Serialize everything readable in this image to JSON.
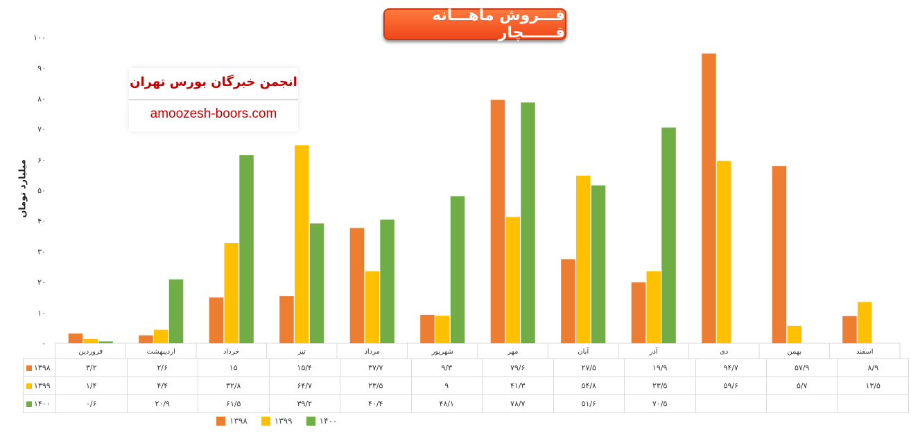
{
  "header": {
    "title": "فـــروش ماهـــانه قــــــچار"
  },
  "logo": {
    "title": "انجمن خبرگان بورس تهران",
    "url": "amoozesh-boors.com"
  },
  "chart_data": {
    "type": "bar",
    "ylabel": "میلیارد تومان",
    "ylim": [
      0,
      100
    ],
    "y_ticks": [
      0,
      10,
      20,
      30,
      40,
      50,
      60,
      70,
      80,
      90,
      100
    ],
    "y_tick_labels": [
      "۰",
      "۱۰",
      "۲۰",
      "۳۰",
      "۴۰",
      "۵۰",
      "۶۰",
      "۷۰",
      "۸۰",
      "۹۰",
      "۱۰۰"
    ],
    "grid": false,
    "legend_position": "bottom",
    "data_table": true,
    "categories": [
      "فروردین",
      "اردیبهشت",
      "خرداد",
      "تیر",
      "مرداد",
      "شهریور",
      "مهر",
      "آبان",
      "آذر",
      "دی",
      "بهمن",
      "اسفند"
    ],
    "series": [
      {
        "name": "۱۳۹۸",
        "color": "#ed7d31",
        "values": [
          3.2,
          2.6,
          15,
          15.4,
          37.7,
          9.3,
          79.6,
          27.5,
          19.9,
          94.7,
          57.9,
          8.9
        ],
        "labels": [
          "۳/۲",
          "۲/۶",
          "۱۵",
          "۱۵/۴",
          "۳۷/۷",
          "۹/۳",
          "۷۹/۶",
          "۲۷/۵",
          "۱۹/۹",
          "۹۴/۷",
          "۵۷/۹",
          "۸/۹"
        ]
      },
      {
        "name": "۱۳۹۹",
        "color": "#ffc000",
        "values": [
          1.4,
          4.4,
          32.8,
          64.7,
          23.5,
          9,
          41.3,
          54.8,
          23.5,
          59.6,
          5.7,
          13.5
        ],
        "labels": [
          "۱/۴",
          "۴/۴",
          "۳۲/۸",
          "۶۴/۷",
          "۲۳/۵",
          "۹",
          "۴۱/۳",
          "۵۴/۸",
          "۲۳/۵",
          "۵۹/۶",
          "۵/۷",
          "۱۳/۵"
        ]
      },
      {
        "name": "۱۴۰۰",
        "color": "#70ad47",
        "values": [
          0.6,
          20.9,
          61.5,
          39.2,
          40.4,
          48.1,
          78.7,
          51.6,
          70.5,
          null,
          null,
          null
        ],
        "labels": [
          "۰/۶",
          "۲۰/۹",
          "۶۱/۵",
          "۳۹/۲",
          "۴۰/۴",
          "۴۸/۱",
          "۷۸/۷",
          "۵۱/۶",
          "۷۰/۵",
          "",
          "",
          ""
        ]
      }
    ]
  }
}
